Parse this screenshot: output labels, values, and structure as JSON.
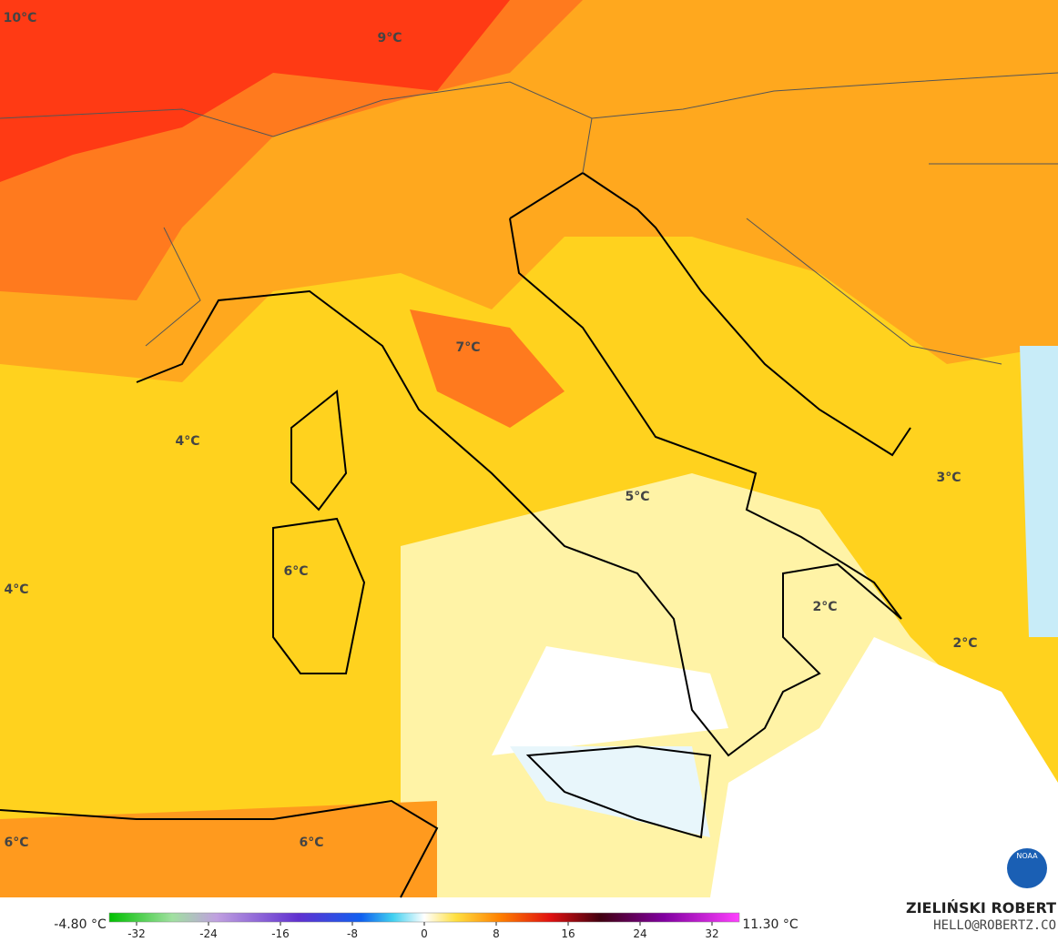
{
  "map": {
    "labels": [
      "10°C",
      "9°C",
      "7°C",
      "4°C",
      "5°C",
      "3°C",
      "6°C",
      "2°C",
      "4°C",
      "2°C",
      "6°C",
      "6°C"
    ],
    "colorbar": {
      "min_label": "-4.80 °C",
      "max_label": "11.30 °C",
      "ticks": [
        -32,
        -24,
        -16,
        -8,
        0,
        8,
        16,
        24,
        32
      ]
    },
    "author": "ZIELIŃSKI ROBERT",
    "contact": "HELLO@ROBERTZ.CO",
    "logo": "NOAA"
  }
}
